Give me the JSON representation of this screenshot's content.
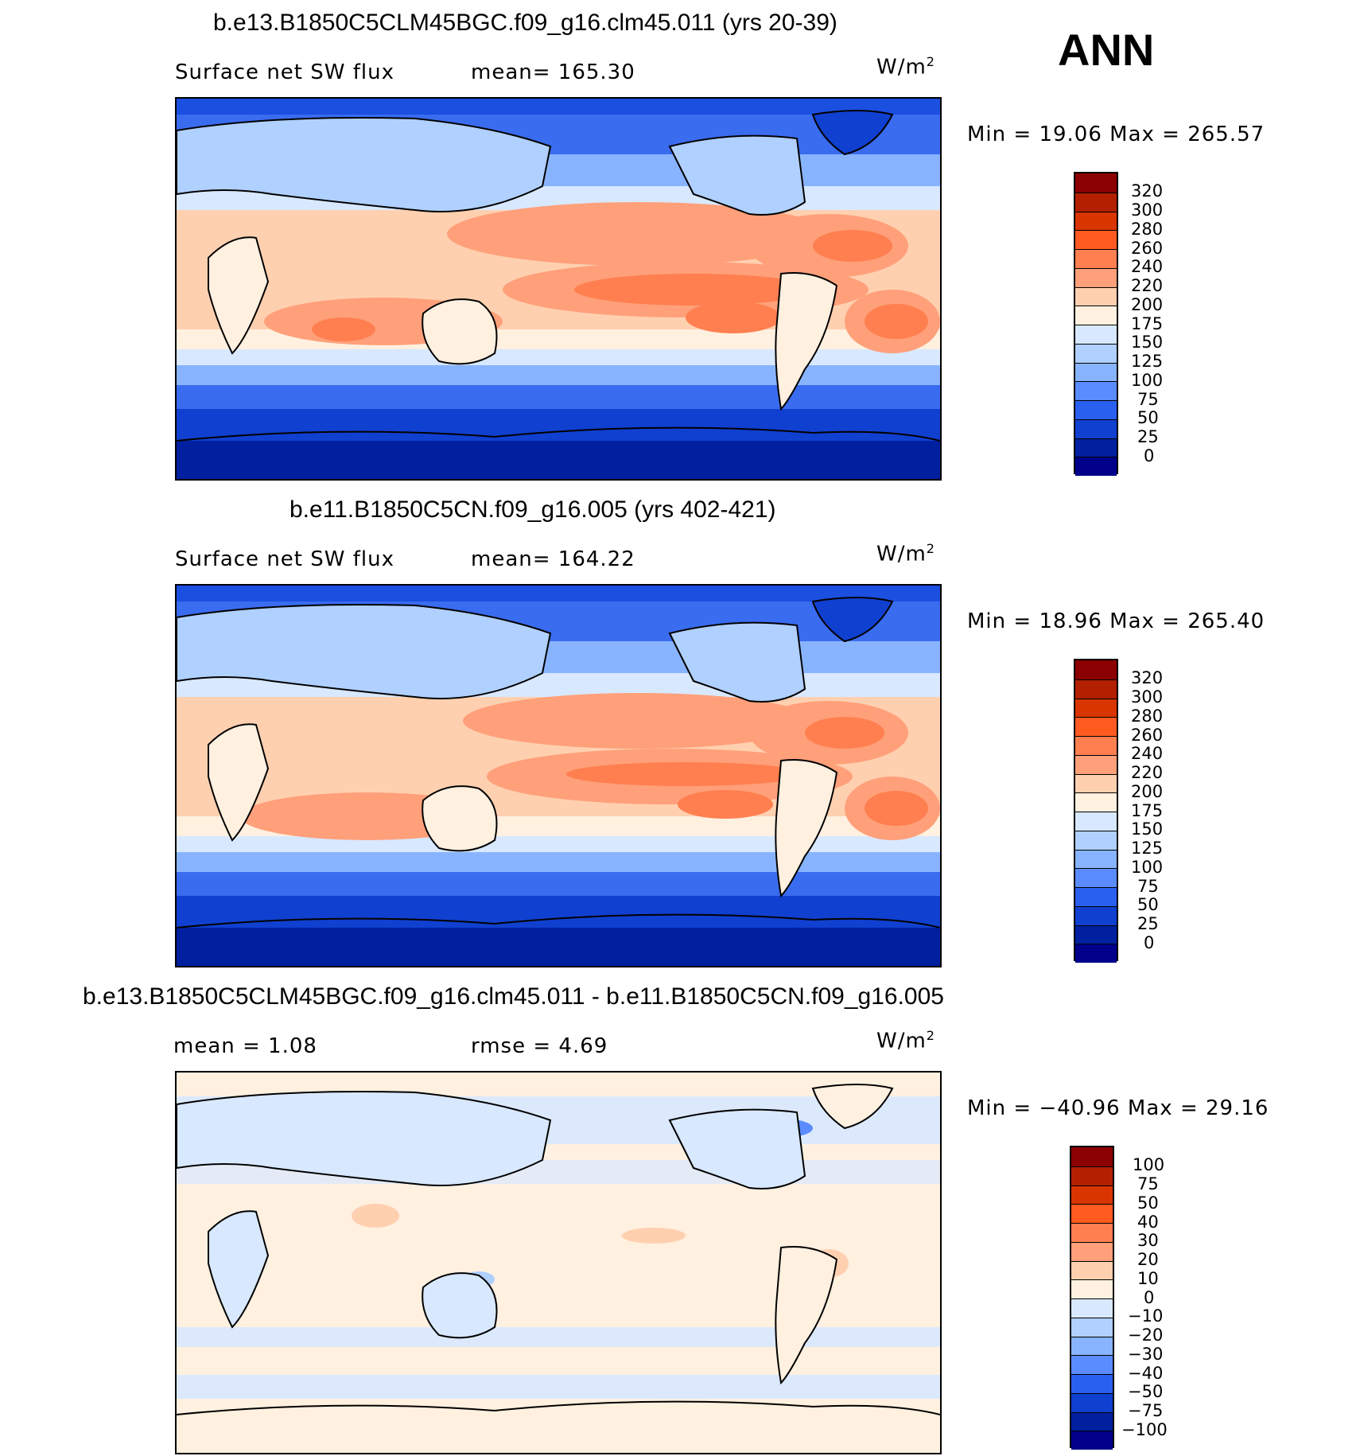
{
  "season": "ANN",
  "units": "W/m",
  "units_sup": "2",
  "panels": [
    {
      "title": "b.e13.B1850C5CLM45BGC.f09_g16.clm45.011 (yrs 20-39)",
      "variable": "Surface net SW flux",
      "stat": "mean=  165.30",
      "minmax": "Min  =    19.06  Max  =  265.57",
      "levels": [
        "320",
        "300",
        "280",
        "260",
        "240",
        "220",
        "200",
        "175",
        "150",
        "125",
        "100",
        "75",
        "50",
        "25",
        "0"
      ],
      "colors": [
        "#8b0000",
        "#b22000",
        "#d93500",
        "#ff5a20",
        "#ff7f50",
        "#ffa07a",
        "#ffd0b0",
        "#fff0e0",
        "#d8e8ff",
        "#b0d0ff",
        "#88b4ff",
        "#5a8cff",
        "#2a60f0",
        "#1040d0",
        "#0020a0",
        "#00008b"
      ]
    },
    {
      "title": "b.e11.B1850C5CN.f09_g16.005 (yrs 402-421)",
      "variable": "Surface net SW flux",
      "stat": "mean=  164.22",
      "minmax": "Min  =    18.96  Max  =  265.40",
      "levels": [
        "320",
        "300",
        "280",
        "260",
        "240",
        "220",
        "200",
        "175",
        "150",
        "125",
        "100",
        "75",
        "50",
        "25",
        "0"
      ],
      "colors": [
        "#8b0000",
        "#b22000",
        "#d93500",
        "#ff5a20",
        "#ff7f50",
        "#ffa07a",
        "#ffd0b0",
        "#fff0e0",
        "#d8e8ff",
        "#b0d0ff",
        "#88b4ff",
        "#5a8cff",
        "#2a60f0",
        "#1040d0",
        "#0020a0",
        "#00008b"
      ]
    },
    {
      "title": "b.e13.B1850C5CLM45BGC.f09_g16.clm45.011 - b.e11.B1850C5CN.f09_g16.005",
      "variable": "mean  =     1.08",
      "stat": "rmse  =     4.69",
      "minmax": "Min  = −40.96  Max  =    29.16",
      "levels": [
        "100",
        "75",
        "50",
        "40",
        "30",
        "20",
        "10",
        "0",
        "−10",
        "−20",
        "−30",
        "−40",
        "−50",
        "−75",
        "−100"
      ],
      "colors": [
        "#8b0000",
        "#b22000",
        "#d93500",
        "#ff5a20",
        "#ff7f50",
        "#ffa07a",
        "#ffd0b0",
        "#fff0e0",
        "#d8e8ff",
        "#b0d0ff",
        "#88b4ff",
        "#5a8cff",
        "#2a60f0",
        "#1040d0",
        "#0020a0",
        "#00008b"
      ]
    }
  ]
}
